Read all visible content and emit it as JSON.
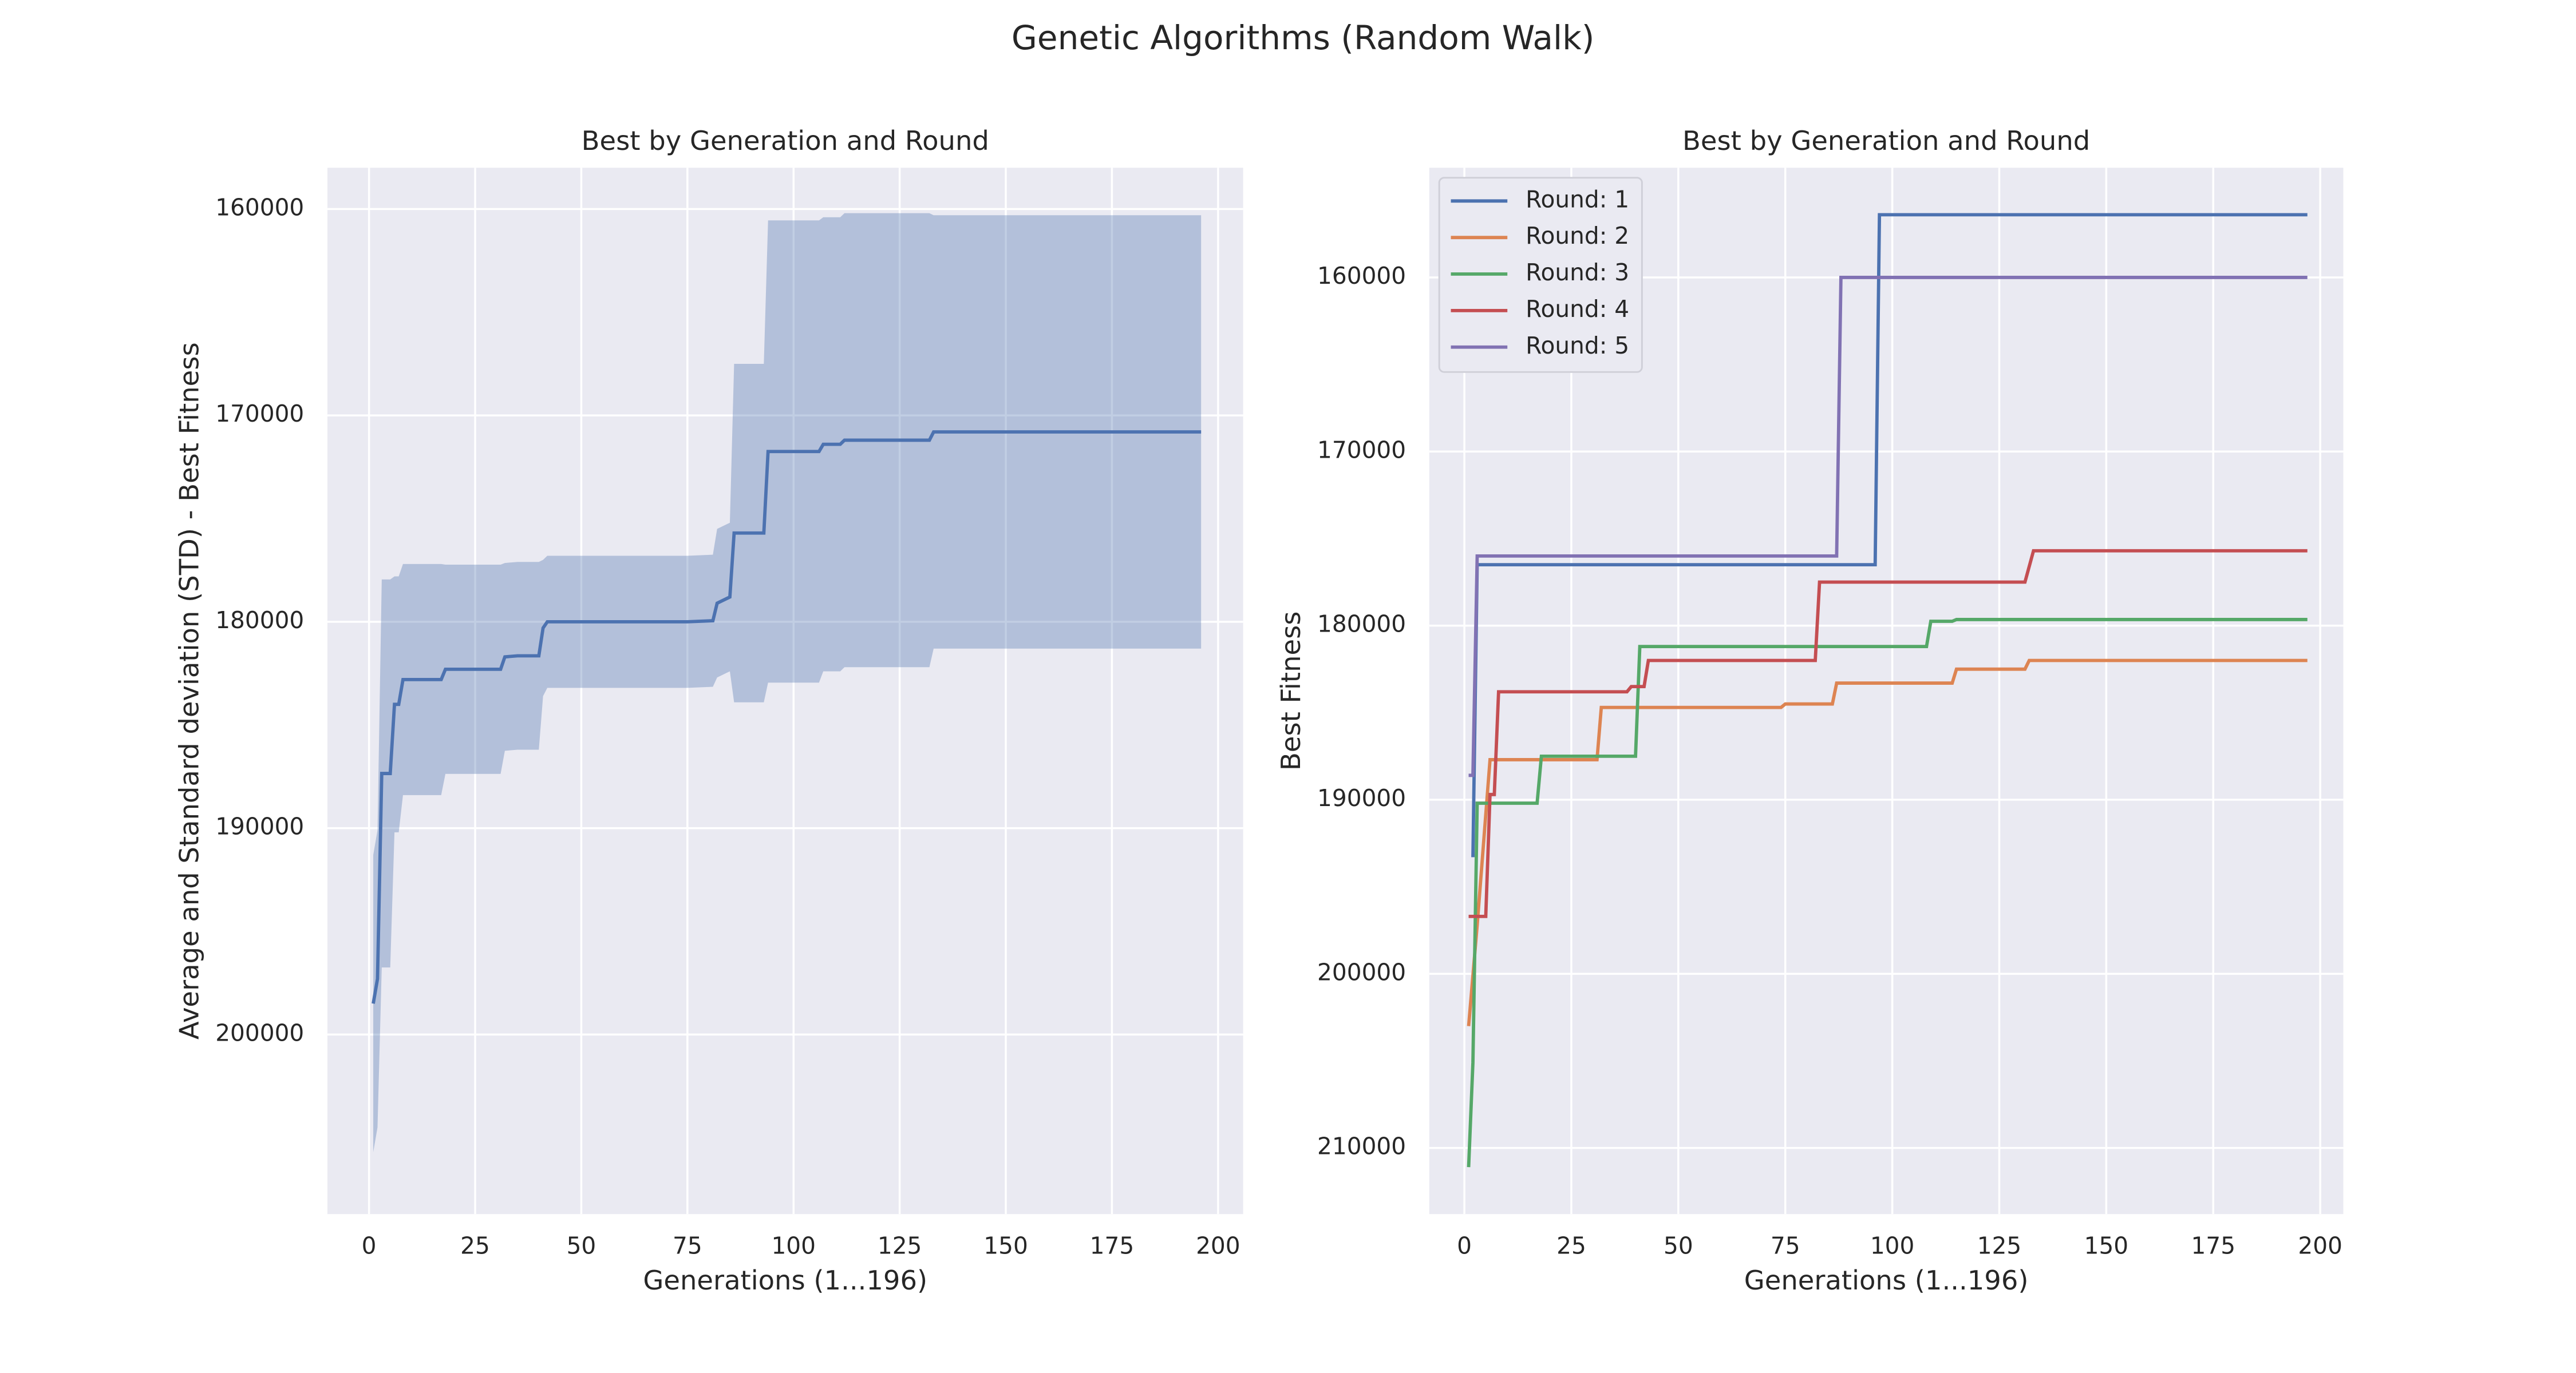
{
  "title": "Genetic Algorithms (Random Walk)",
  "chart_data": [
    {
      "type": "line",
      "title": "Best by Generation and Round",
      "x_label": "Generations (1...196)",
      "y_label": "Average and Standard deviation (STD) - Best Fitness",
      "xlim": [
        -9.8,
        205.9
      ],
      "xticks": [
        0,
        25,
        50,
        75,
        100,
        125,
        150,
        175,
        200
      ],
      "ylim": [
        158000,
        208700
      ],
      "yticks": [
        160000,
        170000,
        180000,
        190000,
        200000
      ],
      "y_inverted": true,
      "grid": true,
      "background": "#eaeaf2",
      "band_opacity": 0.35,
      "x": [
        1,
        2,
        3,
        5,
        6,
        7,
        8,
        17,
        18,
        31,
        32,
        35,
        40,
        41,
        42,
        75,
        81,
        82,
        85,
        86,
        93,
        94,
        106,
        107,
        111,
        112,
        132,
        133,
        196
      ],
      "series": [
        {
          "color": "#4c72b0",
          "values": [
            198500,
            197300,
            187350,
            187350,
            184000,
            184000,
            182800,
            182800,
            182300,
            182300,
            181700,
            181650,
            181650,
            180300,
            180000,
            180000,
            179950,
            179100,
            178800,
            175700,
            175700,
            171750,
            171750,
            171400,
            171400,
            171200,
            171200,
            170800,
            170800
          ],
          "std": [
            7200,
            7200,
            9400,
            9400,
            6200,
            6200,
            5600,
            5600,
            5070,
            5070,
            4550,
            4550,
            4550,
            3300,
            3200,
            3200,
            3200,
            3600,
            3600,
            8200,
            8200,
            11200,
            11200,
            11000,
            11000,
            11000,
            11000,
            10500,
            10500
          ]
        }
      ]
    },
    {
      "type": "line",
      "title": "Best by Generation and Round",
      "x_label": "Generations (1...196)",
      "y_label": "Best Fitness",
      "xlim": [
        -8.2,
        205.4
      ],
      "xticks": [
        0,
        25,
        50,
        75,
        100,
        125,
        150,
        175,
        200
      ],
      "ylim": [
        153700,
        213800
      ],
      "yticks": [
        160000,
        170000,
        180000,
        190000,
        200000,
        210000
      ],
      "y_inverted": true,
      "grid": true,
      "background": "#eaeaf2",
      "legend": "upper-left",
      "series": [
        {
          "name": "Round: 1",
          "color": "#4c72b0",
          "x": [
            2,
            3,
            96,
            97,
            197
          ],
          "values": [
            193300,
            176500,
            176500,
            156400,
            156400
          ]
        },
        {
          "name": "Round: 2",
          "color": "#dd8452",
          "x": [
            1,
            3,
            6,
            31,
            32,
            74,
            75,
            86,
            87,
            114,
            115,
            131,
            132,
            197
          ],
          "values": [
            203000,
            197200,
            187700,
            187700,
            184700,
            184700,
            184500,
            184500,
            183300,
            183300,
            182500,
            182500,
            182000,
            182000
          ]
        },
        {
          "name": "Round: 3",
          "color": "#55a868",
          "x": [
            1,
            2,
            3,
            17,
            18,
            40,
            41,
            108,
            109,
            114,
            115,
            197
          ],
          "values": [
            211100,
            205100,
            190200,
            190200,
            187500,
            187500,
            181200,
            181200,
            179750,
            179750,
            179650,
            179650
          ]
        },
        {
          "name": "Round: 4",
          "color": "#c44e52",
          "x": [
            1,
            5,
            6,
            7,
            8,
            38,
            39,
            42,
            43,
            82,
            83,
            131,
            133,
            197
          ],
          "values": [
            196700,
            196700,
            189700,
            189700,
            183800,
            183800,
            183500,
            183500,
            182000,
            182000,
            177500,
            177500,
            175700,
            175700
          ]
        },
        {
          "name": "Round: 5",
          "color": "#8172b3",
          "x": [
            1,
            2,
            3,
            87,
            88,
            197
          ],
          "values": [
            188600,
            188600,
            176000,
            176000,
            160000,
            160000
          ]
        }
      ]
    }
  ]
}
